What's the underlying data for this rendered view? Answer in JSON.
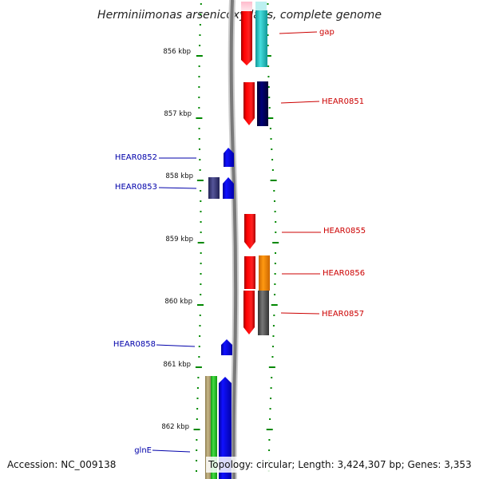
{
  "title": "Herminiimonas arsenicoxydans, complete genome",
  "footer": {
    "accession": "Accession: NC_009138",
    "topology": "Topology: circular; Length: 3,424,307 bp; Genes: 3,353"
  },
  "scale": {
    "labels": [
      "856 kbp",
      "857 kbp",
      "858 kbp",
      "859 kbp",
      "860 kbp",
      "861 kbp",
      "862 kbp"
    ]
  },
  "features": {
    "right": [
      {
        "label": "gap",
        "color": "#cc0000"
      },
      {
        "label": "HEAR0851",
        "color": "#cc0000"
      },
      {
        "label": "HEAR0855",
        "color": "#cc0000"
      },
      {
        "label": "HEAR0856",
        "color": "#cc0000"
      },
      {
        "label": "HEAR0857",
        "color": "#cc0000"
      }
    ],
    "left": [
      {
        "label": "HEAR0852",
        "color": "#0000aa"
      },
      {
        "label": "HEAR0853",
        "color": "#0000aa"
      },
      {
        "label": "HEAR0858",
        "color": "#0000aa"
      },
      {
        "label": "glnE",
        "color": "#0000aa"
      }
    ]
  },
  "colors": {
    "forward_gene": "#ff0000",
    "reverse_gene": "#0000ff",
    "cyan_block": "#33cccc",
    "navy_block": "#000066",
    "slate_block": "#444488",
    "orange_block": "#ff8800",
    "gray_block": "#666666",
    "khaki_block": "#b8a870",
    "green_block": "#33cc33",
    "tick_green": "#008800",
    "backbone": "#888888"
  }
}
